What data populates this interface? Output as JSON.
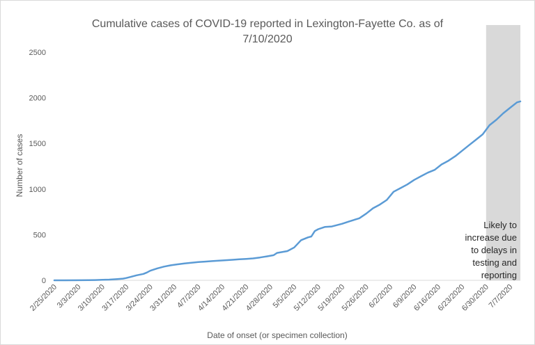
{
  "chart_data": {
    "type": "line",
    "title_line1": "Cumulative cases of COVID-19 reported in Lexington-Fayette Co.  as of",
    "title_line2": "7/10/2020",
    "xlabel": "Date of onset (or specimen collection)",
    "ylabel": "Number of cases",
    "ylim": [
      0,
      2500
    ],
    "yticks": [
      "0",
      "500",
      "1000",
      "1500",
      "2000",
      "2500"
    ],
    "x_tick_labels": [
      "2/25/2020",
      "3/3/2020",
      "3/10/2020",
      "3/17/2020",
      "3/24/2020",
      "3/31/2020",
      "4/7/2020",
      "4/14/2020",
      "4/21/2020",
      "4/28/2020",
      "5/5/2020",
      "5/12/2020",
      "5/19/2020",
      "5/26/2020",
      "6/2/2020",
      "6/9/2020",
      "6/16/2020",
      "6/23/2020",
      "6/30/2020",
      "7/7/2020"
    ],
    "grid": false,
    "legend": "none",
    "line_color": "#5b9bd5",
    "shade_color": "#d9d9d9",
    "shaded_region": {
      "from": "6/30/2020",
      "to": "7/10/2020"
    },
    "annotation": [
      "Likely to",
      "increase due",
      "to delays in",
      "testing and",
      "reporting"
    ],
    "series": [
      {
        "x": [
          "2/25/2020",
          "2/28/2020",
          "3/3/2020",
          "3/6/2020",
          "3/8/2020",
          "3/10/2020",
          "3/12/2020",
          "3/14/2020",
          "3/16/2020",
          "3/17/2020",
          "3/18/2020",
          "3/20/2020",
          "3/22/2020",
          "3/23/2020",
          "3/24/2020",
          "3/26/2020",
          "3/28/2020",
          "3/30/2020",
          "4/1/2020",
          "4/3/2020",
          "4/5/2020",
          "4/7/2020",
          "4/9/2020",
          "4/11/2020",
          "4/13/2020",
          "4/15/2020",
          "4/17/2020",
          "4/19/2020",
          "4/21/2020",
          "4/23/2020",
          "4/25/2020",
          "4/27/2020",
          "4/29/2020",
          "4/30/2020",
          "5/3/2020",
          "5/5/2020",
          "5/7/2020",
          "5/9/2020",
          "5/10/2020",
          "5/11/2020",
          "5/12/2020",
          "5/14/2020",
          "5/16/2020",
          "5/19/2020",
          "5/21/2020",
          "5/24/2020",
          "5/26/2020",
          "5/28/2020",
          "5/30/2020",
          "6/1/2020",
          "6/3/2020",
          "6/5/2020",
          "6/7/2020",
          "6/9/2020",
          "6/11/2020",
          "6/13/2020",
          "6/15/2020",
          "6/17/2020",
          "6/19/2020",
          "6/21/2020",
          "6/23/2020",
          "6/25/2020",
          "6/27/2020",
          "6/29/2020",
          "7/1/2020",
          "7/3/2020",
          "7/5/2020",
          "7/7/2020",
          "7/9/2020",
          "7/10/2020"
        ],
        "values": [
          0,
          0,
          1,
          2,
          3,
          5,
          8,
          12,
          18,
          25,
          35,
          55,
          70,
          85,
          105,
          130,
          150,
          165,
          175,
          185,
          192,
          200,
          205,
          210,
          215,
          220,
          225,
          230,
          235,
          240,
          250,
          262,
          275,
          300,
          320,
          360,
          440,
          470,
          480,
          540,
          560,
          585,
          590,
          620,
          645,
          680,
          730,
          790,
          830,
          880,
          970,
          1010,
          1050,
          1100,
          1140,
          1180,
          1210,
          1270,
          1310,
          1360,
          1420,
          1480,
          1540,
          1600,
          1700,
          1760,
          1830,
          1890,
          1950,
          1960
        ]
      }
    ]
  }
}
